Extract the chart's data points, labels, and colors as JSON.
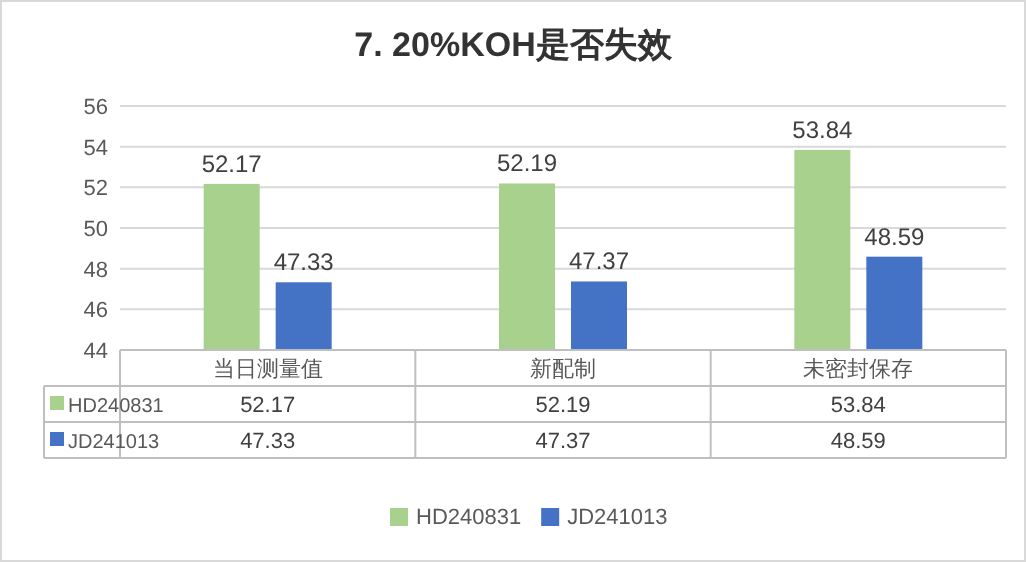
{
  "chart_data": {
    "type": "bar",
    "title": "7. 20%KOH是否失效",
    "categories": [
      "当日测量值",
      "新配制",
      "未密封保存"
    ],
    "series": [
      {
        "name": "HD240831",
        "color": "#a9d18e",
        "values": [
          52.17,
          52.19,
          53.84
        ],
        "value_labels": [
          "52.17",
          "52.19",
          "53.84"
        ]
      },
      {
        "name": "JD241013",
        "color": "#4472c4",
        "values": [
          47.33,
          47.37,
          48.59
        ],
        "value_labels": [
          "47.33",
          "47.37",
          "48.59"
        ]
      }
    ],
    "ylim": [
      44,
      56
    ],
    "yticks": [
      44,
      46,
      48,
      50,
      52,
      54,
      56
    ],
    "grid": "y",
    "annotations": [
      "52.17",
      "52.19",
      "53.84",
      "47.33",
      "47.37",
      "48.59"
    ],
    "legend": "bottom"
  }
}
